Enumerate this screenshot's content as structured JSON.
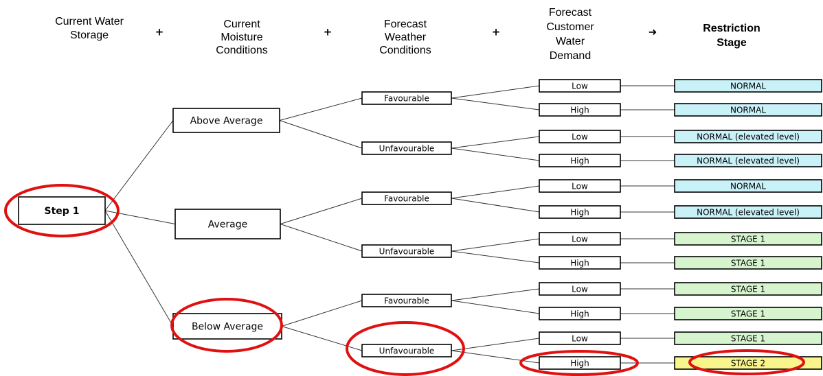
{
  "headers": [
    {
      "lines": [
        "Current Water",
        "Storage"
      ]
    },
    {
      "lines": [
        "Current",
        "Moisture",
        "Conditions"
      ]
    },
    {
      "lines": [
        "Forecast",
        "Weather",
        "Conditions"
      ]
    },
    {
      "lines": [
        "Forecast",
        "Customer",
        "Water",
        "Demand"
      ]
    },
    {
      "lines": [
        "Restriction",
        "Stage"
      ]
    }
  ],
  "operators": [
    "+",
    "+",
    "+",
    "➜"
  ],
  "tree": {
    "root": {
      "label": "Step 1"
    },
    "moisture": [
      {
        "label": "Above Average"
      },
      {
        "label": "Average"
      },
      {
        "label": "Below Average"
      }
    ],
    "weather": [
      {
        "label": "Favourable"
      },
      {
        "label": "Unfavourable"
      },
      {
        "label": "Favourable"
      },
      {
        "label": "Unfavourable"
      },
      {
        "label": "Favourable"
      },
      {
        "label": "Unfavourable"
      }
    ],
    "demand": [
      {
        "label": "Low"
      },
      {
        "label": "High"
      },
      {
        "label": "Low"
      },
      {
        "label": "High"
      },
      {
        "label": "Low"
      },
      {
        "label": "High"
      },
      {
        "label": "Low"
      },
      {
        "label": "High"
      },
      {
        "label": "Low"
      },
      {
        "label": "High"
      },
      {
        "label": "Low"
      },
      {
        "label": "High"
      }
    ],
    "stage": [
      {
        "label": "NORMAL"
      },
      {
        "label": "NORMAL"
      },
      {
        "label": "NORMAL (elevated level)"
      },
      {
        "label": "NORMAL (elevated level)"
      },
      {
        "label": "NORMAL"
      },
      {
        "label": "NORMAL (elevated level)"
      },
      {
        "label": "STAGE 1"
      },
      {
        "label": "STAGE 1"
      },
      {
        "label": "STAGE 1"
      },
      {
        "label": "STAGE 1"
      },
      {
        "label": "STAGE 1"
      },
      {
        "label": "STAGE 2"
      }
    ]
  }
}
